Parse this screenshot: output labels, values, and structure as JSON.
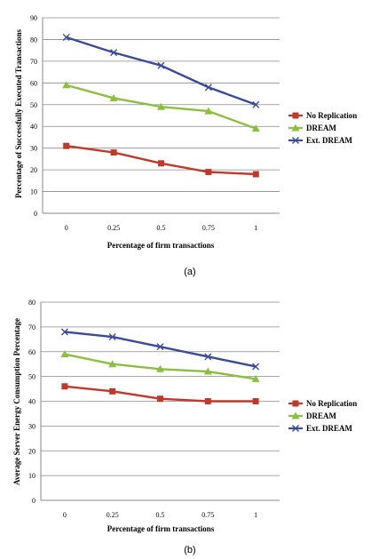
{
  "chart_data": [
    {
      "type": "line",
      "caption": "(a)",
      "categories": [
        "0",
        "0.25",
        "0.5",
        "0.75",
        "1"
      ],
      "xlabel": "Percentage of firm transactions",
      "ylabel": "Percentage of Successfully Executed Transactions",
      "ylim": [
        0,
        90
      ],
      "yticks": [
        0,
        10,
        20,
        30,
        40,
        50,
        60,
        70,
        80,
        90
      ],
      "grid": true,
      "legend_position": "right",
      "series": [
        {
          "name": "No Replication",
          "color": "#c0392b",
          "marker": "square",
          "values": [
            31,
            28,
            23,
            19,
            18
          ]
        },
        {
          "name": "DREAM",
          "color": "#8cbf3f",
          "marker": "triangle",
          "values": [
            59,
            53,
            49,
            47,
            39
          ]
        },
        {
          "name": "Ext. DREAM",
          "color": "#3b4a9b",
          "marker": "x",
          "values": [
            81,
            74,
            68,
            58,
            50
          ]
        }
      ]
    },
    {
      "type": "line",
      "caption": "(b)",
      "categories": [
        "0",
        "0.25",
        "0.5",
        "0.75",
        "1"
      ],
      "xlabel": "Percentage of firm transactions",
      "ylabel": "Average Server Energy Consumption Percentage",
      "ylim": [
        0,
        80
      ],
      "yticks": [
        0,
        10,
        20,
        30,
        40,
        50,
        60,
        70,
        80
      ],
      "grid": true,
      "legend_position": "right",
      "series": [
        {
          "name": "No Replication",
          "color": "#c0392b",
          "marker": "square",
          "values": [
            46,
            44,
            41,
            40,
            40
          ]
        },
        {
          "name": "DREAM",
          "color": "#8cbf3f",
          "marker": "triangle",
          "values": [
            59,
            55,
            53,
            52,
            49
          ]
        },
        {
          "name": "Ext. DREAM",
          "color": "#3b4a9b",
          "marker": "x",
          "values": [
            68,
            66,
            62,
            58,
            54
          ]
        }
      ]
    }
  ]
}
